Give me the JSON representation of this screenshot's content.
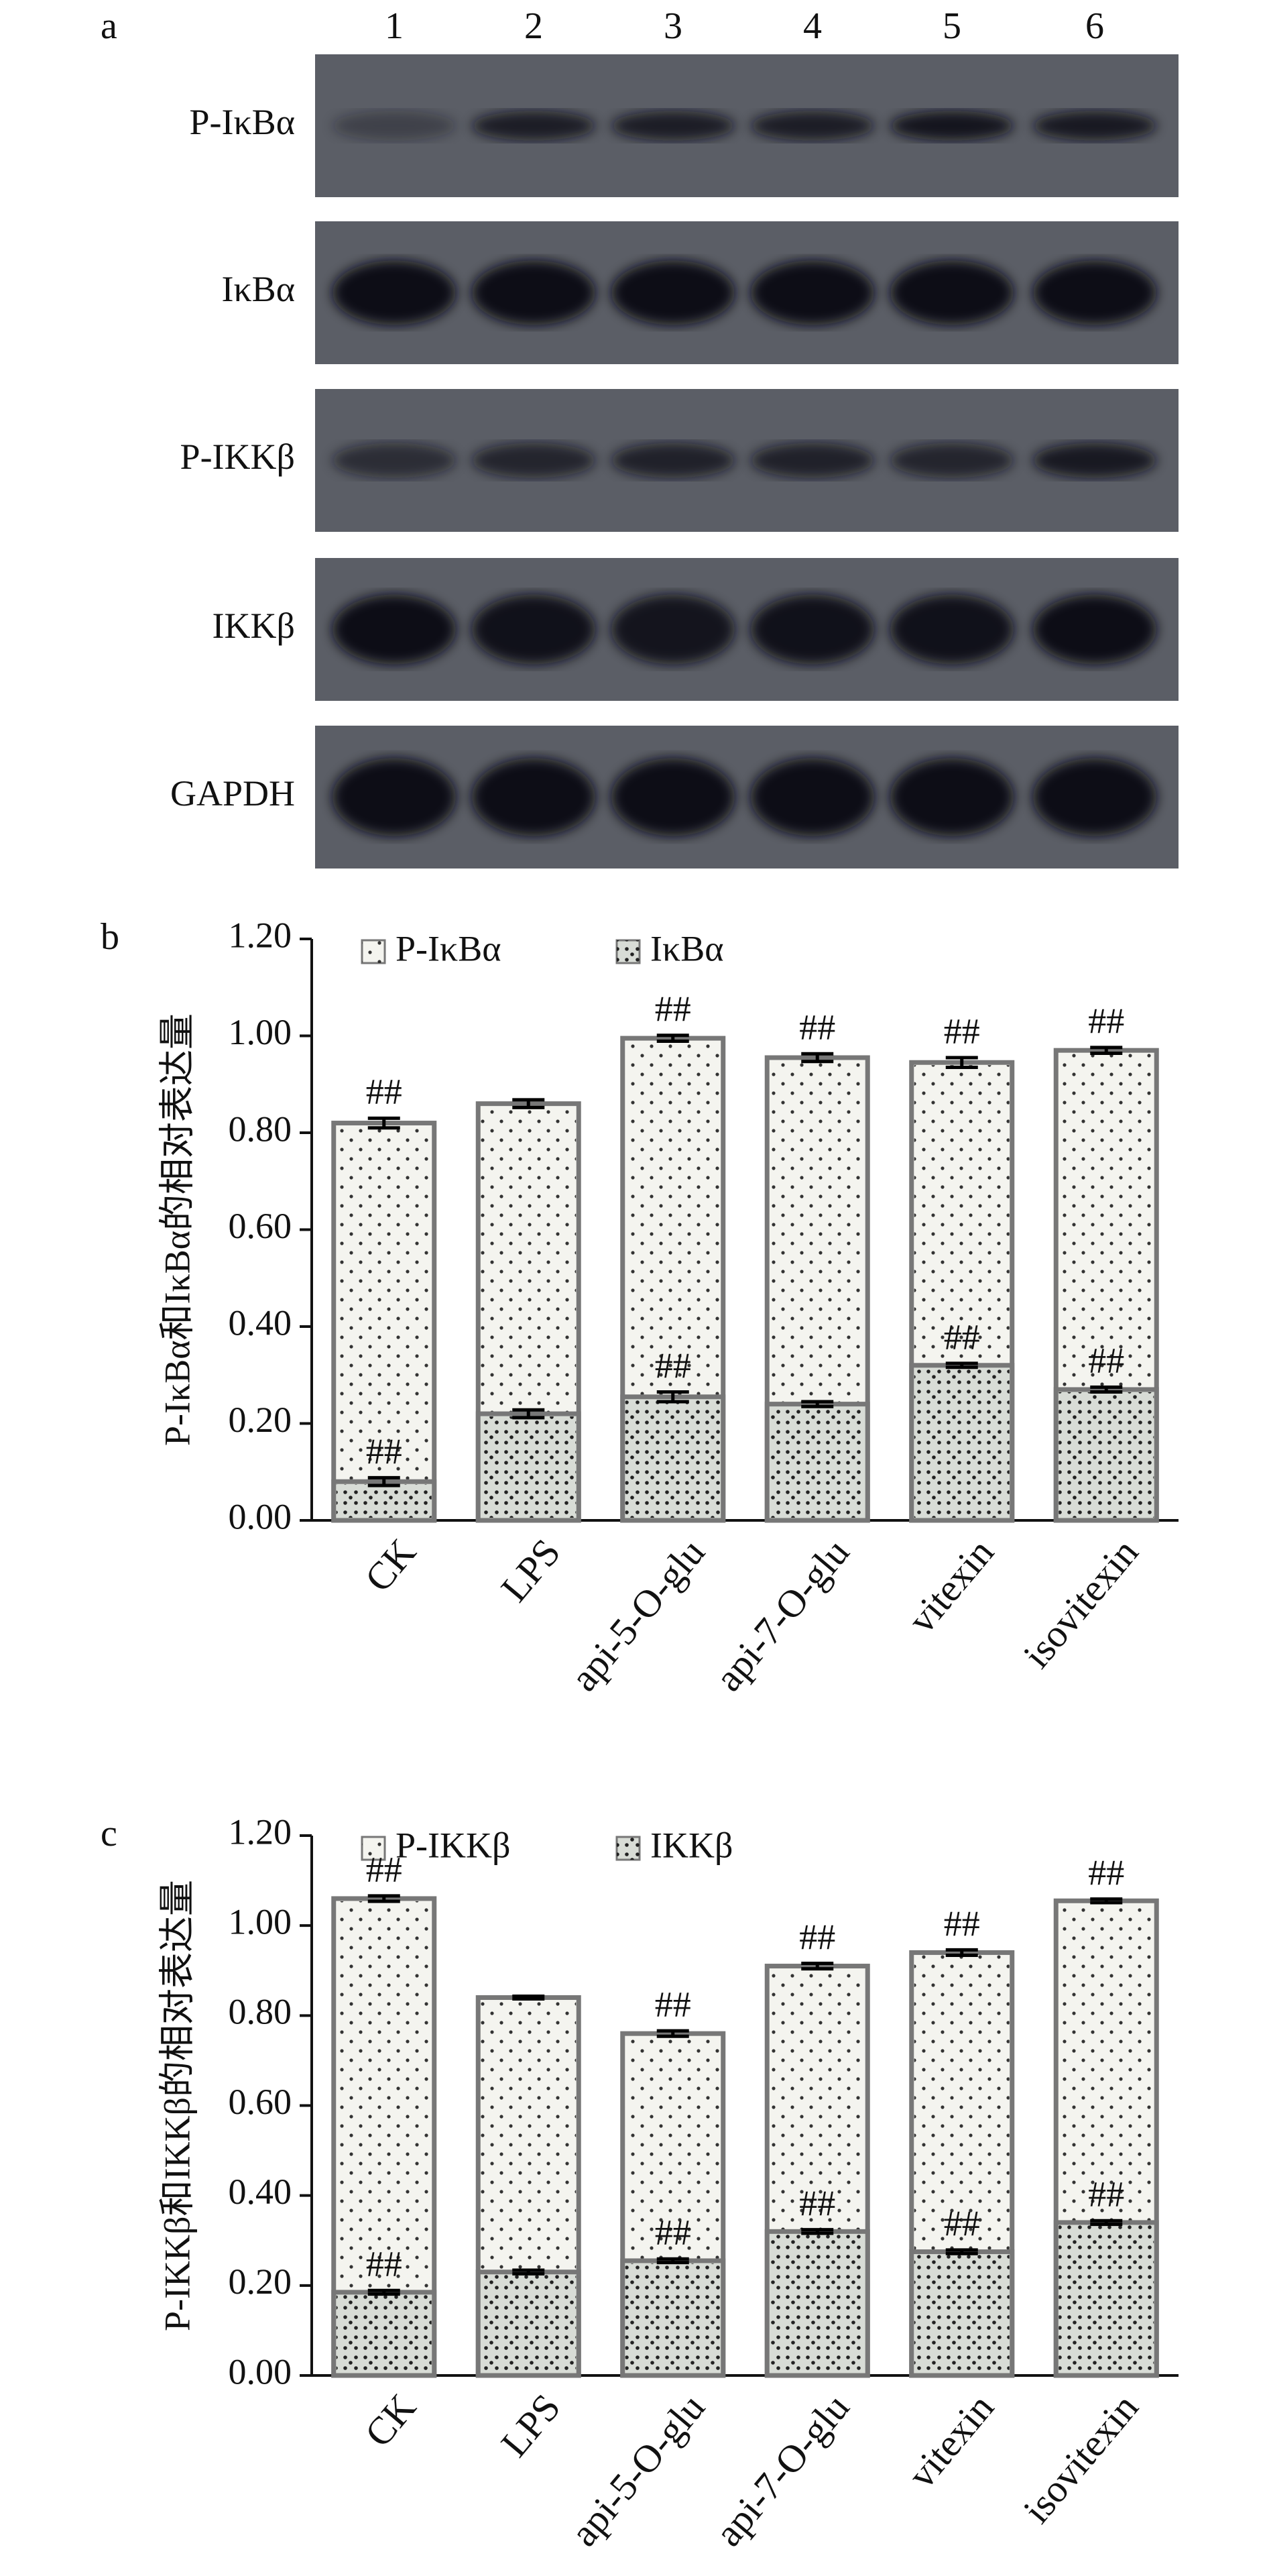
{
  "blot": {
    "letter": "a",
    "lanes": [
      "1",
      "2",
      "3",
      "4",
      "5",
      "6"
    ],
    "rows": [
      "P-IκBα",
      "IκBα",
      "P-IKKβ",
      "IKKβ",
      "GAPDH"
    ]
  },
  "chart_data": [
    {
      "type": "bar",
      "panel": "b",
      "ylabel": "P-IκBα和IκBα的相对表达量",
      "categories": [
        "CK",
        "LPS",
        "api-5-O-glu",
        "api-7-O-glu",
        "vitexin",
        "isovitexin"
      ],
      "series": [
        {
          "name": "P-IκBα",
          "color": "#f4f4ef",
          "values": [
            0.82,
            0.86,
            0.995,
            0.955,
            0.945,
            0.97
          ],
          "errors": [
            0.01,
            0.008,
            0.006,
            0.008,
            0.01,
            0.006
          ],
          "labels": [
            "##",
            null,
            "##",
            "##",
            "##",
            "##"
          ]
        },
        {
          "name": "IκBα",
          "color": "#d8dcd6",
          "values": [
            0.08,
            0.22,
            0.255,
            0.24,
            0.32,
            0.27
          ],
          "errors": [
            0.008,
            0.008,
            0.01,
            0.005,
            0.004,
            0.005
          ],
          "labels": [
            "##",
            null,
            "##",
            null,
            "##",
            "##"
          ]
        }
      ],
      "ylim": [
        0,
        1.2
      ],
      "yticks": [
        {
          "value": 0,
          "label": "0.00"
        },
        {
          "value": 0.2,
          "label": "0.20"
        },
        {
          "value": 0.4,
          "label": "0.40"
        },
        {
          "value": 0.6,
          "label": "0.60"
        },
        {
          "value": 0.8,
          "label": "0.80"
        },
        {
          "value": 1,
          "label": "1.00"
        },
        {
          "value": 1.2,
          "label": "1.20"
        }
      ]
    },
    {
      "type": "bar",
      "panel": "c",
      "ylabel": "P-IKKβ和IKKβ的相对表达量",
      "categories": [
        "CK",
        "LPS",
        "api-5-O-glu",
        "api-7-O-glu",
        "vitexin",
        "isovitexin"
      ],
      "series": [
        {
          "name": "P-IKKβ",
          "color": "#f4f4ef",
          "values": [
            1.06,
            0.84,
            0.76,
            0.91,
            0.94,
            1.055
          ],
          "errors": [
            0.006,
            0.003,
            0.006,
            0.006,
            0.006,
            0.004
          ],
          "labels": [
            "##",
            null,
            "##",
            "##",
            "##",
            "##"
          ]
        },
        {
          "name": "IKKβ",
          "color": "#d8dcd6",
          "values": [
            0.185,
            0.23,
            0.255,
            0.32,
            0.275,
            0.34
          ],
          "errors": [
            0.004,
            0.004,
            0.004,
            0.004,
            0.004,
            0.004
          ],
          "labels": [
            "##",
            null,
            "##",
            "##",
            "##",
            "##"
          ]
        }
      ],
      "ylim": [
        0,
        1.2
      ],
      "yticks": [
        {
          "value": 0,
          "label": "0.00"
        },
        {
          "value": 0.2,
          "label": "0.20"
        },
        {
          "value": 0.4,
          "label": "0.40"
        },
        {
          "value": 0.6,
          "label": "0.60"
        },
        {
          "value": 0.8,
          "label": "0.80"
        },
        {
          "value": 1,
          "label": "1.00"
        },
        {
          "value": 1.2,
          "label": "1.20"
        }
      ]
    }
  ]
}
